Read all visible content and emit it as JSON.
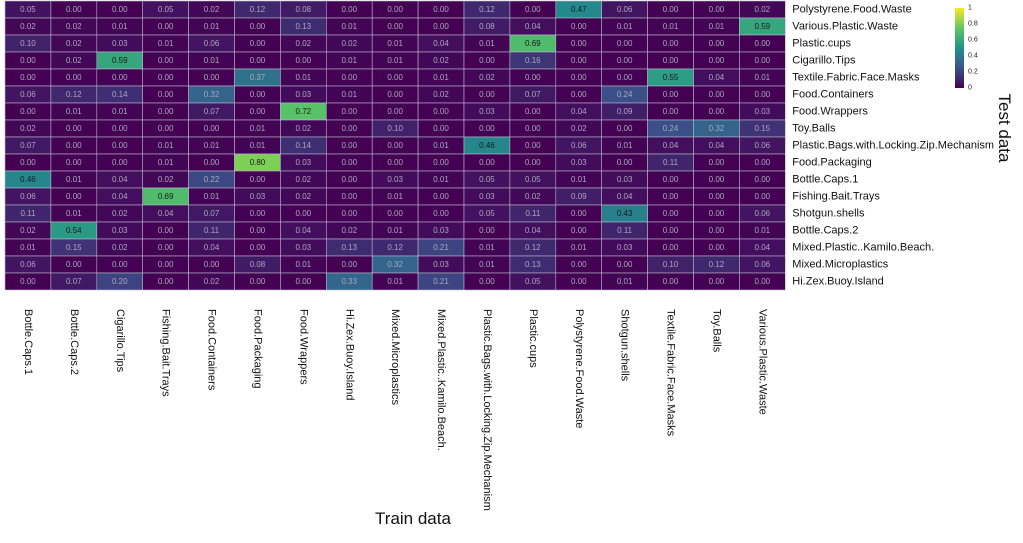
{
  "chart_data": {
    "type": "heatmap",
    "xlabel": "Train data",
    "ylabel": "Test data",
    "x_categories": [
      "Bottle.Caps.1",
      "Bottle.Caps.2",
      "Cigarillo.Tips",
      "Fishing.Bait.Trays",
      "Food.Containers",
      "Food.Packaging",
      "Food.Wrappers",
      "Hi.Zex.Buoy.Island",
      "Mixed.Microplastics",
      "Mixed.Plastic..Kamilo.Beach.",
      "Plastic.Bags.with.Locking.Zip.Mechanism",
      "Plastic.cups",
      "Polystyrene.Food.Waste",
      "Shotgun.shells",
      "Textile.Fabric.Face.Masks",
      "Toy.Balls",
      "Various.Plastic.Waste"
    ],
    "y_categories": [
      "Polystyrene.Food.Waste",
      "Various.Plastic.Waste",
      "Plastic.cups",
      "Cigarillo.Tips",
      "Textile.Fabric.Face.Masks",
      "Food.Containers",
      "Food.Wrappers",
      "Toy.Balls",
      "Plastic.Bags.with.Locking.Zip.Mechanism",
      "Food.Packaging",
      "Bottle.Caps.1",
      "Fishing.Bait.Trays",
      "Shotgun.shells",
      "Bottle.Caps.2",
      "Mixed.Plastic..Kamilo.Beach.",
      "Mixed.Microplastics",
      "Hi.Zex.Buoy.Island"
    ],
    "values": [
      [
        0.05,
        0.0,
        0.0,
        0.05,
        0.02,
        0.12,
        0.08,
        0.0,
        0.0,
        0.0,
        0.12,
        0.0,
        0.47,
        0.06,
        0.0,
        0.0,
        0.02
      ],
      [
        0.02,
        0.02,
        0.01,
        0.0,
        0.01,
        0.0,
        0.13,
        0.01,
        0.0,
        0.0,
        0.08,
        0.04,
        0.0,
        0.01,
        0.01,
        0.01,
        0.59
      ],
      [
        0.1,
        0.02,
        0.03,
        0.01,
        0.06,
        0.0,
        0.02,
        0.02,
        0.01,
        0.04,
        0.01,
        0.69,
        0.0,
        0.0,
        0.0,
        0.0,
        0.0
      ],
      [
        0.0,
        0.02,
        0.59,
        0.0,
        0.01,
        0.0,
        0.0,
        0.01,
        0.01,
        0.02,
        0.0,
        0.16,
        0.0,
        0.0,
        0.0,
        0.0,
        0.0
      ],
      [
        0.0,
        0.0,
        0.0,
        0.0,
        0.0,
        0.37,
        0.01,
        0.0,
        0.0,
        0.01,
        0.02,
        0.0,
        0.0,
        0.0,
        0.55,
        0.04,
        0.01
      ],
      [
        0.06,
        0.12,
        0.14,
        0.0,
        0.32,
        0.0,
        0.03,
        0.01,
        0.0,
        0.02,
        0.0,
        0.07,
        0.0,
        0.24,
        0.0,
        0.0,
        0.0
      ],
      [
        0.0,
        0.01,
        0.01,
        0.0,
        0.07,
        0.0,
        0.72,
        0.0,
        0.0,
        0.0,
        0.03,
        0.0,
        0.04,
        0.09,
        0.0,
        0.0,
        0.03
      ],
      [
        0.02,
        0.0,
        0.0,
        0.0,
        0.0,
        0.01,
        0.02,
        0.0,
        0.1,
        0.0,
        0.0,
        0.0,
        0.02,
        0.0,
        0.24,
        0.32,
        0.15
      ],
      [
        0.07,
        0.0,
        0.0,
        0.01,
        0.01,
        0.01,
        0.14,
        0.0,
        0.0,
        0.01,
        0.46,
        0.0,
        0.06,
        0.01,
        0.04,
        0.04,
        0.06
      ],
      [
        0.0,
        0.0,
        0.0,
        0.01,
        0.0,
        0.8,
        0.03,
        0.0,
        0.0,
        0.0,
        0.0,
        0.0,
        0.03,
        0.0,
        0.11,
        0.0,
        0.0
      ],
      [
        0.46,
        0.01,
        0.04,
        0.02,
        0.22,
        0.0,
        0.02,
        0.0,
        0.03,
        0.01,
        0.05,
        0.05,
        0.01,
        0.03,
        0.0,
        0.0,
        0.0
      ],
      [
        0.06,
        0.0,
        0.04,
        0.69,
        0.01,
        0.03,
        0.02,
        0.0,
        0.01,
        0.0,
        0.03,
        0.02,
        0.09,
        0.04,
        0.0,
        0.0,
        0.0
      ],
      [
        0.11,
        0.01,
        0.02,
        0.04,
        0.07,
        0.0,
        0.0,
        0.0,
        0.0,
        0.0,
        0.05,
        0.11,
        0.0,
        0.43,
        0.0,
        0.0,
        0.06
      ],
      [
        0.02,
        0.54,
        0.03,
        0.0,
        0.11,
        0.0,
        0.04,
        0.02,
        0.01,
        0.03,
        0.0,
        0.04,
        0.0,
        0.11,
        0.0,
        0.0,
        0.01
      ],
      [
        0.01,
        0.15,
        0.02,
        0.0,
        0.04,
        0.0,
        0.03,
        0.13,
        0.12,
        0.21,
        0.01,
        0.12,
        0.01,
        0.03,
        0.0,
        0.0,
        0.04
      ],
      [
        0.06,
        0.0,
        0.0,
        0.0,
        0.0,
        0.08,
        0.01,
        0.0,
        0.32,
        0.03,
        0.01,
        0.13,
        0.0,
        0.0,
        0.1,
        0.12,
        0.06
      ],
      [
        0.0,
        0.07,
        0.2,
        0.0,
        0.02,
        0.0,
        0.0,
        0.33,
        0.01,
        0.21,
        0.0,
        0.05,
        0.0,
        0.01,
        0.0,
        0.0,
        0.0
      ]
    ],
    "colorbar": {
      "range": [
        0,
        1
      ],
      "ticks": [
        "1",
        "0.8",
        "0.6",
        "0.4",
        "0.2",
        "0"
      ]
    },
    "colormap": "viridis",
    "grid": true,
    "legend": "top-right"
  }
}
